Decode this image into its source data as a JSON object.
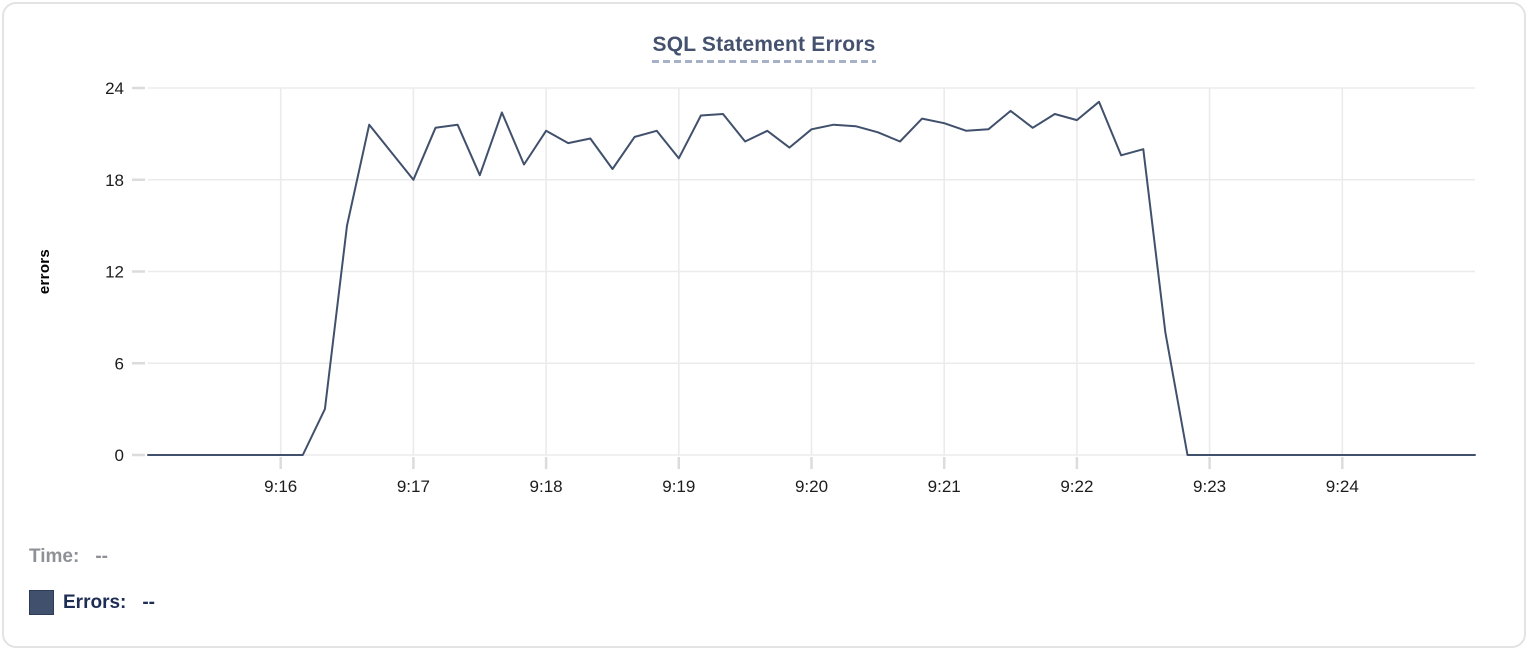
{
  "colors": {
    "series_line": "#41506c",
    "title_text": "#44516f",
    "title_underline_dash": "#a6b0c6",
    "grid_line": "#ebebeb",
    "tick_mark": "#dcdcdc",
    "tick_label_text": "#1c1c1c",
    "time_readout_text": "#8e9196",
    "errors_readout_text": "#1e2d55",
    "card_border": "#e3e3e3"
  },
  "readout": {
    "time_label": "Time:",
    "time_value": "--",
    "errors_label": "Errors:",
    "errors_value": "--"
  },
  "chart_data": {
    "type": "line",
    "title": "SQL Statement Errors",
    "xlabel": "",
    "ylabel": "errors",
    "ylim": [
      0,
      24
    ],
    "y_ticks": [
      0,
      6,
      12,
      18,
      24
    ],
    "x_domain": [
      "9:15:00",
      "9:25:00"
    ],
    "x_ticks": [
      "9:16",
      "9:17",
      "9:18",
      "9:19",
      "9:20",
      "9:21",
      "9:22",
      "9:23",
      "9:24"
    ],
    "grid": true,
    "legend_position": "bottom-left",
    "series": [
      {
        "name": "Errors",
        "color": "#41506c",
        "points": [
          [
            "9:15:00",
            0
          ],
          [
            "9:15:10",
            0
          ],
          [
            "9:15:20",
            0
          ],
          [
            "9:15:30",
            0
          ],
          [
            "9:15:40",
            0
          ],
          [
            "9:15:50",
            0
          ],
          [
            "9:16:00",
            0
          ],
          [
            "9:16:10",
            0
          ],
          [
            "9:16:20",
            3
          ],
          [
            "9:16:30",
            15
          ],
          [
            "9:16:40",
            21.6
          ],
          [
            "9:16:50",
            19.8
          ],
          [
            "9:17:00",
            18
          ],
          [
            "9:17:10",
            21.4
          ],
          [
            "9:17:20",
            21.6
          ],
          [
            "9:17:30",
            18.3
          ],
          [
            "9:17:40",
            22.4
          ],
          [
            "9:17:50",
            19
          ],
          [
            "9:18:00",
            21.2
          ],
          [
            "9:18:10",
            20.4
          ],
          [
            "9:18:20",
            20.7
          ],
          [
            "9:18:30",
            18.7
          ],
          [
            "9:18:40",
            20.8
          ],
          [
            "9:18:50",
            21.2
          ],
          [
            "9:19:00",
            19.4
          ],
          [
            "9:19:10",
            22.2
          ],
          [
            "9:19:20",
            22.3
          ],
          [
            "9:19:30",
            20.5
          ],
          [
            "9:19:40",
            21.2
          ],
          [
            "9:19:50",
            20.1
          ],
          [
            "9:20:00",
            21.3
          ],
          [
            "9:20:10",
            21.6
          ],
          [
            "9:20:20",
            21.5
          ],
          [
            "9:20:30",
            21.1
          ],
          [
            "9:20:40",
            20.5
          ],
          [
            "9:20:50",
            22
          ],
          [
            "9:21:00",
            21.7
          ],
          [
            "9:21:10",
            21.2
          ],
          [
            "9:21:20",
            21.3
          ],
          [
            "9:21:30",
            22.5
          ],
          [
            "9:21:40",
            21.4
          ],
          [
            "9:21:50",
            22.3
          ],
          [
            "9:22:00",
            21.9
          ],
          [
            "9:22:10",
            23.1
          ],
          [
            "9:22:20",
            19.6
          ],
          [
            "9:22:30",
            20
          ],
          [
            "9:22:40",
            8
          ],
          [
            "9:22:50",
            0
          ],
          [
            "9:23:00",
            0
          ],
          [
            "9:23:10",
            0
          ],
          [
            "9:23:20",
            0
          ],
          [
            "9:23:30",
            0
          ],
          [
            "9:23:40",
            0
          ],
          [
            "9:23:50",
            0
          ],
          [
            "9:24:00",
            0
          ],
          [
            "9:24:10",
            0
          ],
          [
            "9:24:20",
            0
          ],
          [
            "9:24:30",
            0
          ],
          [
            "9:24:40",
            0
          ],
          [
            "9:24:50",
            0
          ],
          [
            "9:25:00",
            0
          ]
        ]
      }
    ]
  }
}
